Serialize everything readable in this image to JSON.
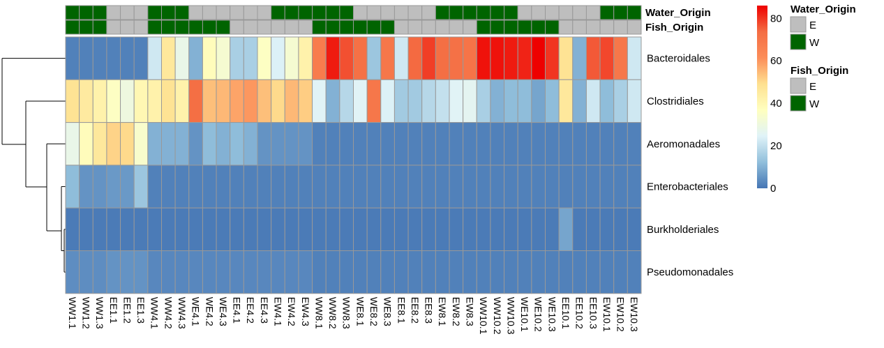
{
  "chart_data": {
    "type": "heatmap",
    "columns": [
      "WW1.1",
      "WW1.2",
      "WW1.3",
      "EE1.1",
      "EE1.2",
      "EE1.3",
      "WW4.1",
      "WW4.2",
      "WW4.3",
      "WE4.1",
      "WE4.2",
      "WE4.3",
      "EE4.1",
      "EE4.2",
      "EE4.3",
      "EW4.1",
      "EW4.2",
      "EW4.3",
      "WW8.1",
      "WW8.2",
      "WW8.3",
      "WE8.1",
      "WE8.2",
      "WE8.3",
      "EE8.1",
      "EE8.2",
      "EE8.3",
      "EW8.1",
      "EW8.2",
      "EW8.3",
      "WW10.1",
      "WW10.2",
      "WW10.3",
      "WE10.1",
      "WE10.2",
      "WE10.3",
      "EE10.1",
      "EE10.2",
      "EE10.3",
      "EW10.1",
      "EW10.2",
      "EW10.3"
    ],
    "rows": [
      "Bacteroidales",
      "Clostridiales",
      "Aeromonadales",
      "Enterobacteriales",
      "Burkholderiales",
      "Pseudomonadales"
    ],
    "values": [
      [
        2,
        2,
        2,
        2,
        2,
        2,
        22,
        46,
        28,
        10,
        38,
        33,
        16,
        16,
        36,
        24,
        33,
        42,
        68,
        83,
        77,
        72,
        14,
        70,
        22,
        74,
        79,
        73,
        72,
        71,
        84,
        84,
        83,
        82,
        86,
        80,
        48,
        10,
        76,
        78,
        70,
        22
      ],
      [
        48,
        45,
        42,
        36,
        30,
        40,
        42,
        48,
        42,
        73,
        54,
        55,
        58,
        60,
        54,
        50,
        55,
        52,
        25,
        10,
        18,
        25,
        70,
        24,
        15,
        15,
        18,
        20,
        25,
        26,
        16,
        10,
        12,
        12,
        8,
        12,
        46,
        10,
        22,
        12,
        16,
        22
      ],
      [
        28,
        38,
        46,
        51,
        50,
        34,
        10,
        10,
        10,
        5,
        12,
        10,
        12,
        10,
        5,
        5,
        5,
        5,
        2,
        2,
        2,
        2,
        2,
        2,
        2,
        2,
        2,
        2,
        2,
        2,
        2,
        2,
        2,
        2,
        2,
        2,
        2,
        2,
        2,
        2,
        2,
        2
      ],
      [
        12,
        5,
        5,
        6,
        6,
        14,
        2,
        2,
        2,
        2,
        2,
        2,
        2,
        2,
        2,
        2,
        2,
        2,
        2,
        2,
        2,
        2,
        2,
        2,
        2,
        2,
        2,
        2,
        2,
        2,
        2,
        2,
        2,
        2,
        2,
        2,
        2,
        2,
        2,
        2,
        2,
        2
      ],
      [
        1,
        1,
        1,
        1,
        1,
        1,
        1,
        1,
        1,
        1,
        1,
        1,
        1,
        1,
        1,
        1,
        1,
        1,
        1,
        1,
        1,
        1,
        1,
        1,
        1,
        1,
        1,
        1,
        1,
        1,
        1,
        1,
        1,
        1,
        1,
        1,
        8,
        1,
        1,
        1,
        1,
        1
      ],
      [
        4,
        4,
        4,
        5,
        5,
        5,
        3,
        3,
        3,
        3,
        3,
        3,
        3,
        3,
        3,
        3,
        3,
        3,
        2,
        2,
        2,
        2,
        2,
        2,
        2,
        2,
        2,
        2,
        2,
        2,
        2,
        2,
        2,
        2,
        2,
        2,
        2,
        2,
        2,
        2,
        2,
        2
      ]
    ],
    "annotations": [
      {
        "name": "Water_Origin",
        "values": [
          "W",
          "W",
          "W",
          "E",
          "E",
          "E",
          "W",
          "W",
          "W",
          "E",
          "E",
          "E",
          "E",
          "E",
          "E",
          "W",
          "W",
          "W",
          "W",
          "W",
          "W",
          "E",
          "E",
          "E",
          "E",
          "E",
          "E",
          "W",
          "W",
          "W",
          "W",
          "W",
          "W",
          "E",
          "E",
          "E",
          "E",
          "E",
          "E",
          "W",
          "W",
          "W"
        ]
      },
      {
        "name": "Fish_Origin",
        "values": [
          "W",
          "W",
          "W",
          "E",
          "E",
          "E",
          "W",
          "W",
          "W",
          "W",
          "W",
          "W",
          "E",
          "E",
          "E",
          "E",
          "E",
          "E",
          "W",
          "W",
          "W",
          "W",
          "W",
          "W",
          "E",
          "E",
          "E",
          "E",
          "E",
          "E",
          "W",
          "W",
          "W",
          "W",
          "W",
          "W",
          "E",
          "E",
          "E",
          "E",
          "E",
          "E"
        ]
      }
    ],
    "color_scale": {
      "min": 0,
      "max": 86,
      "ticks": [
        0,
        20,
        40,
        60,
        80
      ],
      "colors": [
        "#4575b4",
        "#91bfdb",
        "#e0f3f8",
        "#ffffbf",
        "#fee090",
        "#fc8d59",
        "#f46d43",
        "#ee0000"
      ]
    },
    "legends": [
      {
        "title": "Water_Origin",
        "entries": [
          {
            "label": "E",
            "color": "#bebebe"
          },
          {
            "label": "W",
            "color": "#006400"
          }
        ]
      },
      {
        "title": "Fish_Origin",
        "entries": [
          {
            "label": "E",
            "color": "#bebebe"
          },
          {
            "label": "W",
            "color": "#006400"
          }
        ]
      }
    ],
    "row_dendrogram": true
  }
}
